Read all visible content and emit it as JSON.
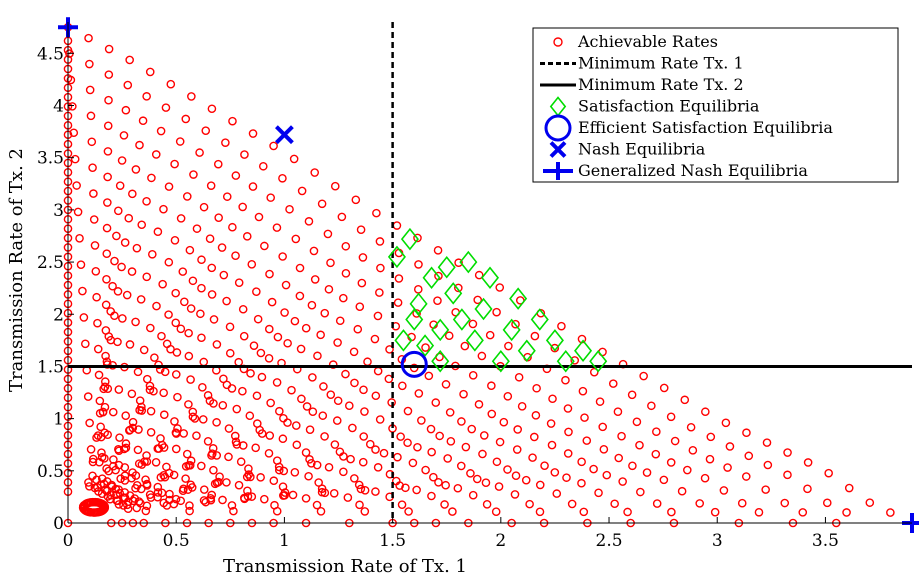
{
  "chart_data": {
    "type": "scatter",
    "xlabel": "Transmission Rate of Tx. 1",
    "ylabel": "Transmission Rate of Tx. 2",
    "xlim": [
      0,
      3.9
    ],
    "ylim": [
      0,
      4.8
    ],
    "xticks": [
      0,
      0.5,
      1,
      1.5,
      2,
      2.5,
      3,
      3.5
    ],
    "xtick_labels": [
      "0",
      "0.5",
      "1",
      "1.5",
      "2",
      "2.5",
      "3",
      "3.5"
    ],
    "yticks": [
      0,
      0.5,
      1,
      1.5,
      2,
      2.5,
      3,
      3.5,
      4,
      4.5
    ],
    "ytick_labels": [
      "0",
      "0.5",
      "1",
      "1.5",
      "2",
      "2.5",
      "3",
      "3.5",
      "4",
      "4.5"
    ],
    "grid": false,
    "legend_position": "top-right",
    "min_rate_tx1": 1.5,
    "min_rate_tx2": 1.5,
    "achievable_rates_description": "Fan of rays from the origin region toward the Pareto boundary connecting (0, 4.75) and (3.9, 0)",
    "series": [
      {
        "name": "Achievable Rates",
        "marker": "circle",
        "color": "#ff0000",
        "boundary": [
          [
            0,
            4.75
          ],
          [
            0.3,
            4.42
          ],
          [
            0.6,
            4.05
          ],
          [
            1.0,
            3.55
          ],
          [
            1.4,
            3.0
          ],
          [
            1.6,
            2.75
          ],
          [
            2.0,
            2.25
          ],
          [
            2.5,
            1.6
          ],
          [
            3.0,
            1.0
          ],
          [
            3.5,
            0.5
          ],
          [
            3.7,
            0.2
          ],
          [
            3.9,
            0
          ]
        ]
      },
      {
        "name": "Minimum Rate Tx. 1",
        "style": "dashed",
        "color": "#000000",
        "x": 1.5
      },
      {
        "name": "Minimum Rate Tx. 2",
        "style": "solid",
        "color": "#000000",
        "y": 1.5
      },
      {
        "name": "Satisfaction Equilibria",
        "marker": "diamond",
        "color": "#00dd00",
        "points": [
          [
            1.52,
            2.55
          ],
          [
            1.58,
            2.72
          ],
          [
            1.62,
            2.1
          ],
          [
            1.68,
            2.35
          ],
          [
            1.72,
            1.85
          ],
          [
            1.75,
            2.45
          ],
          [
            1.78,
            2.2
          ],
          [
            1.82,
            1.95
          ],
          [
            1.85,
            2.5
          ],
          [
            1.65,
            1.7
          ],
          [
            1.72,
            1.55
          ],
          [
            1.88,
            1.75
          ],
          [
            1.92,
            2.05
          ],
          [
            1.95,
            2.35
          ],
          [
            2.0,
            1.55
          ],
          [
            2.05,
            1.85
          ],
          [
            2.08,
            2.15
          ],
          [
            2.12,
            1.65
          ],
          [
            2.18,
            1.95
          ],
          [
            2.25,
            1.75
          ],
          [
            2.3,
            1.55
          ],
          [
            2.38,
            1.65
          ],
          [
            2.45,
            1.55
          ],
          [
            1.55,
            1.75
          ],
          [
            1.6,
            1.95
          ]
        ]
      },
      {
        "name": "Efficient Satisfaction Equilibria",
        "marker": "large-circle",
        "color": "#0000ee",
        "points": [
          [
            1.6,
            1.52
          ]
        ]
      },
      {
        "name": "Nash Equilibria",
        "marker": "x",
        "color": "#0000ee",
        "points": [
          [
            1.0,
            3.72
          ]
        ]
      },
      {
        "name": "Generalized Nash Equilibria",
        "marker": "plus",
        "color": "#0000ee",
        "points": [
          [
            0,
            4.75
          ],
          [
            3.9,
            0
          ]
        ]
      }
    ]
  }
}
